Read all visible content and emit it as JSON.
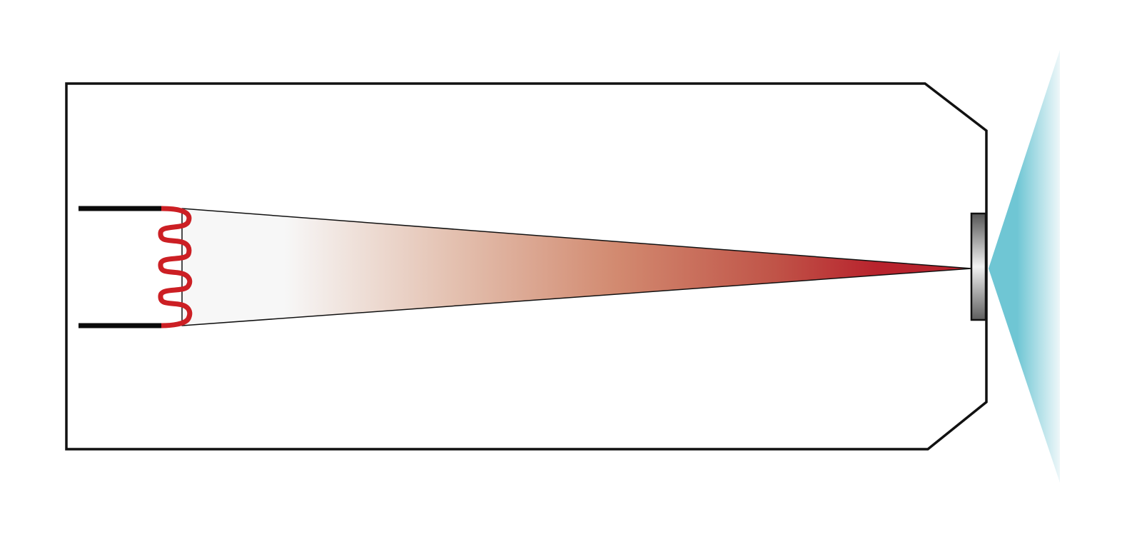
{
  "diagram": {
    "colors": {
      "outline": "#111111",
      "filament": "#cc1f24",
      "beam_start": "#f7f7f7",
      "beam_mid": "#d9a58e",
      "beam_end": "#b8232d",
      "emission": "#6fc6d4",
      "window_dark": "#5a5a5a",
      "window_light": "#f2f2f2"
    },
    "icons": [
      "tube-housing",
      "cathode-leads",
      "filament-coil",
      "electron-beam",
      "anode-window",
      "emitted-radiation-cone"
    ]
  }
}
